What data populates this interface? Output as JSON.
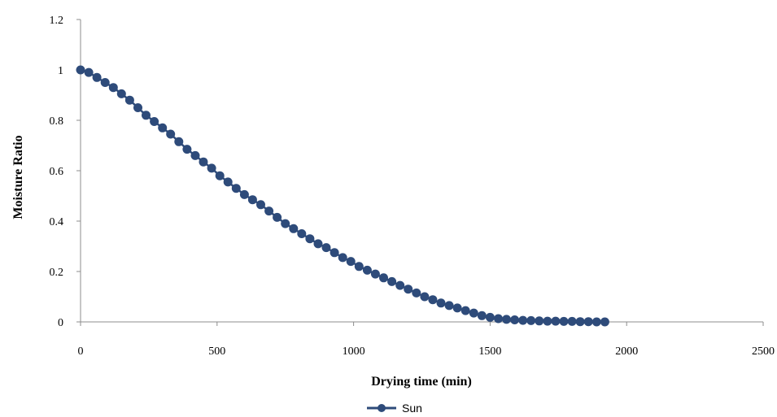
{
  "chart_data": {
    "type": "line",
    "title": "",
    "xlabel": "Drying time (min)",
    "ylabel": "Moisture Ratio",
    "xlim": [
      0,
      2500
    ],
    "ylim": [
      0,
      1.2
    ],
    "x_ticks": [
      "0",
      "500",
      "1000",
      "1500",
      "2000",
      "2500"
    ],
    "y_ticks": [
      "0",
      "0.2",
      "0.4",
      "0.6",
      "0.8",
      "1",
      "1.2"
    ],
    "grid": false,
    "legend_position": "bottom",
    "series": [
      {
        "name": "Sun",
        "color": "#2E4B7A",
        "marker": "circle",
        "x": [
          0,
          30,
          60,
          90,
          120,
          150,
          180,
          210,
          240,
          270,
          300,
          330,
          360,
          390,
          420,
          450,
          480,
          510,
          540,
          570,
          600,
          630,
          660,
          690,
          720,
          750,
          780,
          810,
          840,
          870,
          900,
          930,
          960,
          990,
          1020,
          1050,
          1080,
          1110,
          1140,
          1170,
          1200,
          1230,
          1260,
          1290,
          1320,
          1350,
          1380,
          1410,
          1440,
          1470,
          1500,
          1530,
          1560,
          1590,
          1620,
          1650,
          1680,
          1710,
          1740,
          1770,
          1800,
          1830,
          1860,
          1890,
          1920
        ],
        "y": [
          1.0,
          0.99,
          0.97,
          0.95,
          0.93,
          0.905,
          0.88,
          0.85,
          0.82,
          0.795,
          0.77,
          0.745,
          0.715,
          0.685,
          0.66,
          0.635,
          0.61,
          0.58,
          0.555,
          0.53,
          0.505,
          0.485,
          0.465,
          0.44,
          0.415,
          0.39,
          0.37,
          0.35,
          0.33,
          0.31,
          0.295,
          0.275,
          0.255,
          0.24,
          0.22,
          0.205,
          0.19,
          0.175,
          0.16,
          0.145,
          0.13,
          0.115,
          0.1,
          0.088,
          0.075,
          0.065,
          0.055,
          0.045,
          0.035,
          0.025,
          0.018,
          0.013,
          0.01,
          0.008,
          0.006,
          0.005,
          0.004,
          0.003,
          0.003,
          0.002,
          0.002,
          0.001,
          0.001,
          0.0,
          0.0
        ]
      }
    ]
  }
}
